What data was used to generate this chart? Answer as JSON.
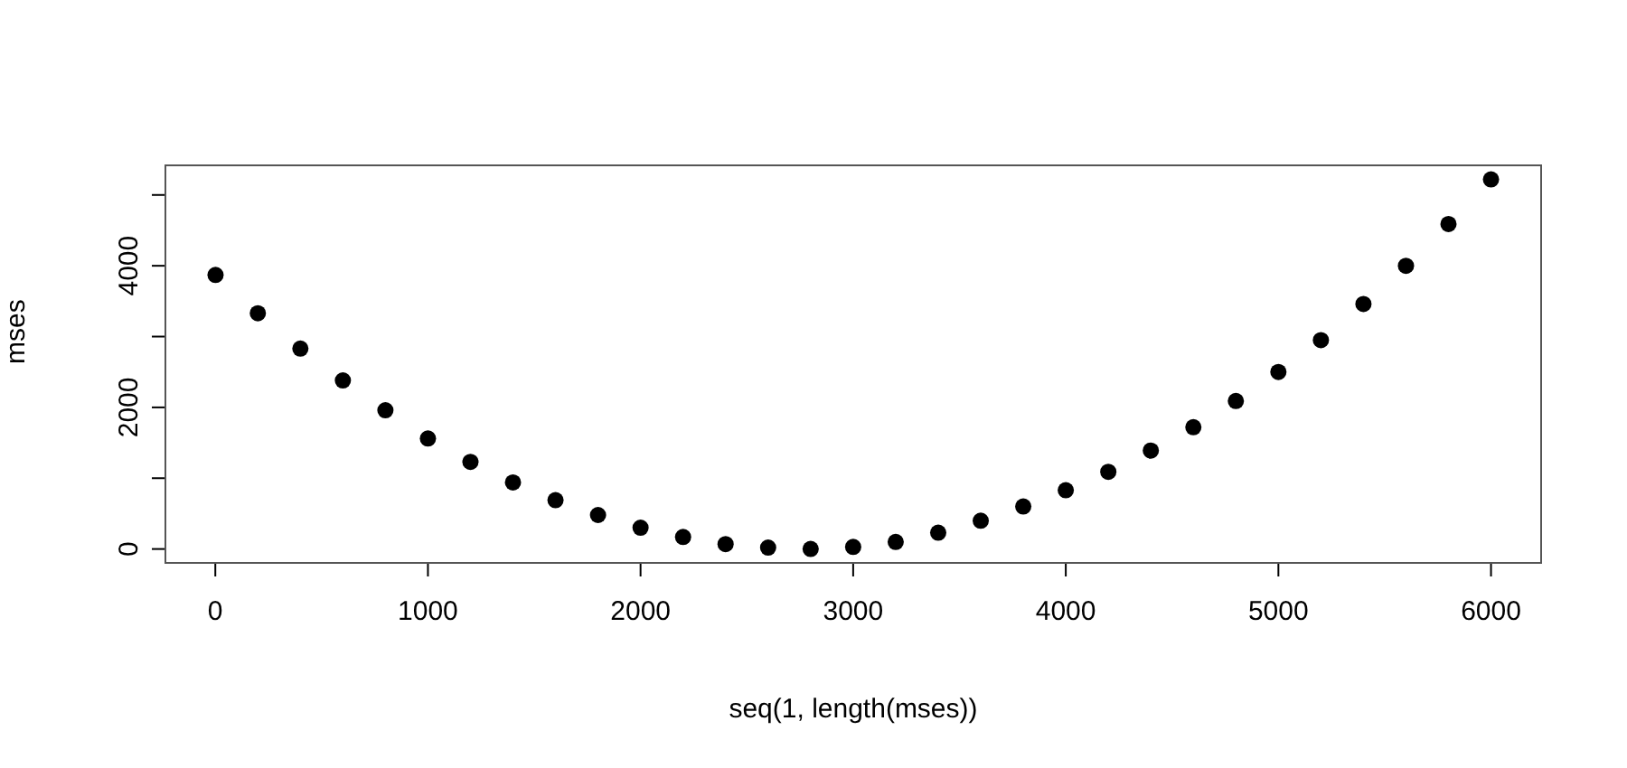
{
  "chart_data": {
    "type": "scatter",
    "xlabel": "seq(1, length(mses))",
    "ylabel": "mses",
    "x": [
      1,
      200,
      400,
      600,
      800,
      1000,
      1200,
      1400,
      1600,
      1800,
      2000,
      2200,
      2400,
      2600,
      2800,
      3000,
      3200,
      3400,
      3600,
      3800,
      4000,
      4200,
      4400,
      4600,
      4800,
      5000,
      5200,
      5400,
      5600,
      5800,
      6000
    ],
    "series": [
      {
        "color": "#000000",
        "values": [
          3870,
          3330,
          2830,
          2380,
          1960,
          1560,
          1230,
          940,
          690,
          480,
          300,
          170,
          70,
          20,
          0,
          30,
          100,
          230,
          400,
          600,
          830,
          1090,
          1390,
          1720,
          2090,
          2500,
          2950,
          3460,
          4000,
          4590,
          5220
        ]
      }
    ],
    "xlim": [
      -239,
      6240
    ],
    "ylim": [
      -209,
      5431
    ],
    "xticks": [
      0,
      1000,
      2000,
      3000,
      4000,
      5000,
      6000
    ],
    "yticks": [
      0,
      {
        "value": 1000,
        "label": null
      },
      2000,
      {
        "value": 3000,
        "label": null
      },
      4000,
      {
        "value": 5000,
        "label": null
      }
    ],
    "grid": false,
    "legend": false,
    "marker": "circle"
  }
}
